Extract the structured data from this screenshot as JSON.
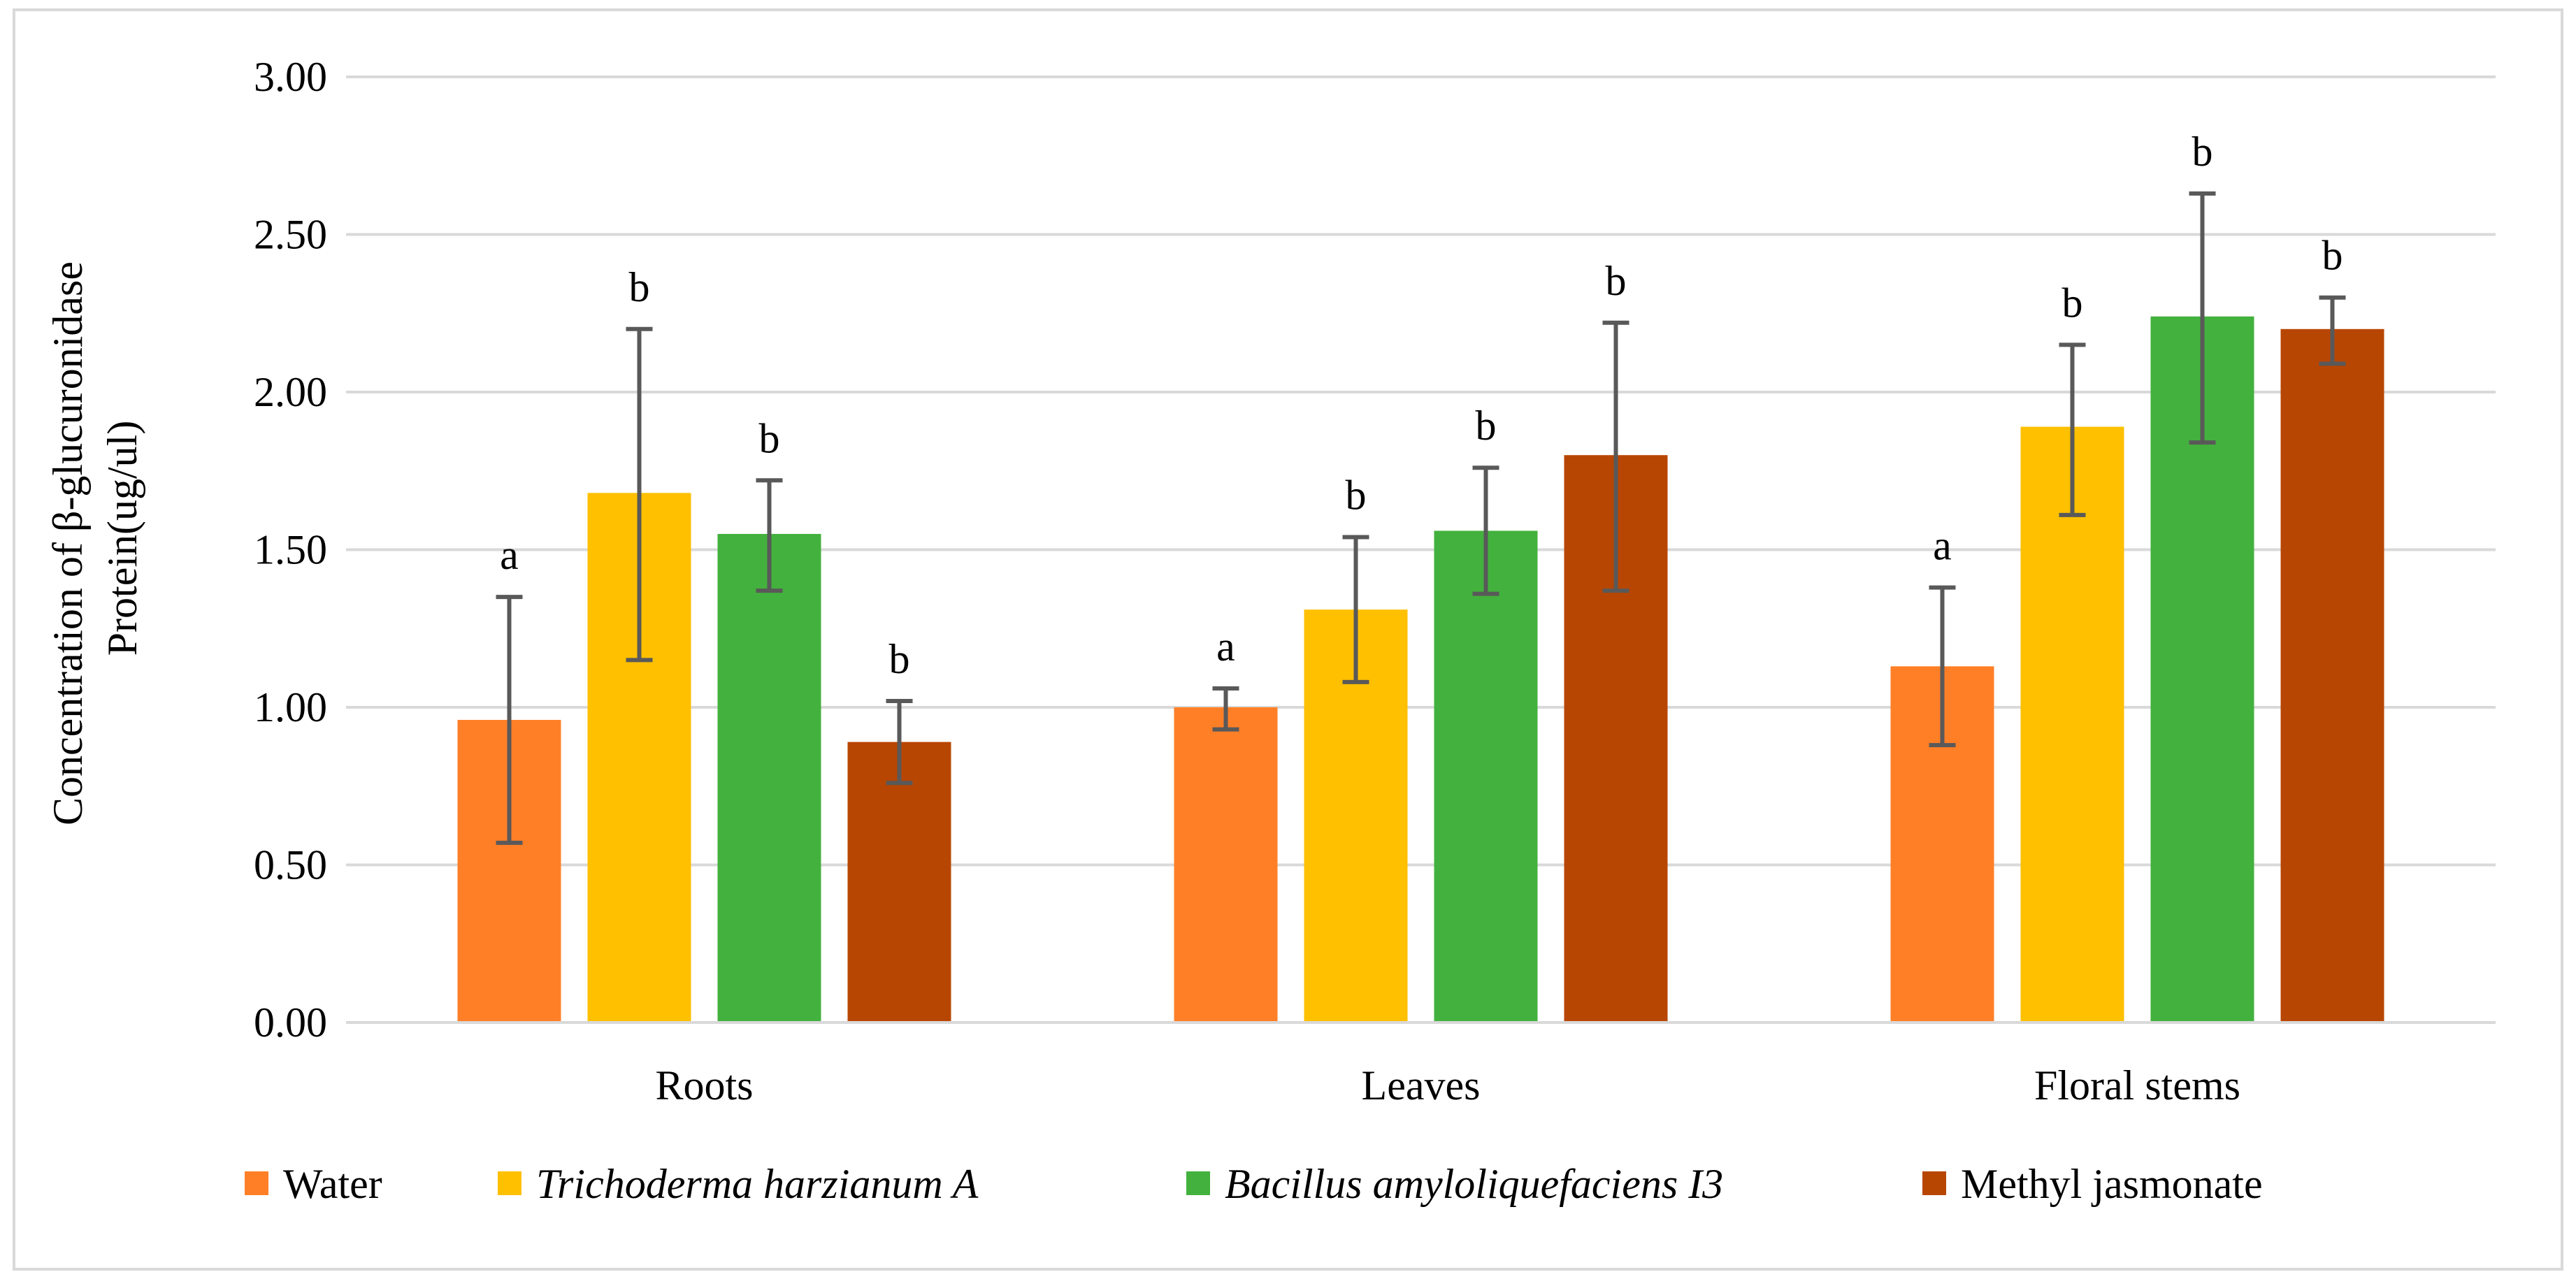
{
  "chart_data": {
    "type": "bar",
    "title": "",
    "xlabel": "",
    "ylabel_lines": [
      "Concentration of β-glucuronidase",
      "Protein(ug/ul)"
    ],
    "categories": [
      "Roots",
      "Leaves",
      "Floral stems"
    ],
    "ylim": [
      0,
      3
    ],
    "yticks": [
      "0.00",
      "0.50",
      "1.00",
      "1.50",
      "2.00",
      "2.50",
      "3.00"
    ],
    "grid": true,
    "legend_position": "bottom",
    "series": [
      {
        "name": "Water",
        "italic": false,
        "color": "#FF7F27",
        "values": [
          0.96,
          1.0,
          1.13
        ],
        "err_low": [
          0.57,
          0.93,
          0.88
        ],
        "err_high": [
          1.35,
          1.06,
          1.38
        ],
        "labels": [
          "a",
          "a",
          "a"
        ]
      },
      {
        "name": "Trichoderma harzianum A",
        "italic": true,
        "color": "#FFC000",
        "values": [
          1.68,
          1.31,
          1.89
        ],
        "err_low": [
          1.15,
          1.08,
          1.61
        ],
        "err_high": [
          2.2,
          1.54,
          2.15
        ],
        "labels": [
          "b",
          "b",
          "b"
        ]
      },
      {
        "name": "Bacillus amyloliquefaciens I3",
        "italic": true,
        "color": "#43B13D",
        "values": [
          1.55,
          1.56,
          2.24
        ],
        "err_low": [
          1.37,
          1.36,
          1.84
        ],
        "err_high": [
          1.72,
          1.76,
          2.63
        ],
        "labels": [
          "b",
          "b",
          "b"
        ]
      },
      {
        "name": "Methyl jasmonate",
        "italic": false,
        "color": "#B84603",
        "values": [
          0.89,
          1.8,
          2.2
        ],
        "err_low": [
          0.76,
          1.37,
          2.09
        ],
        "err_high": [
          1.02,
          2.22,
          2.3
        ],
        "labels": [
          "b",
          "b",
          "b"
        ]
      }
    ]
  }
}
